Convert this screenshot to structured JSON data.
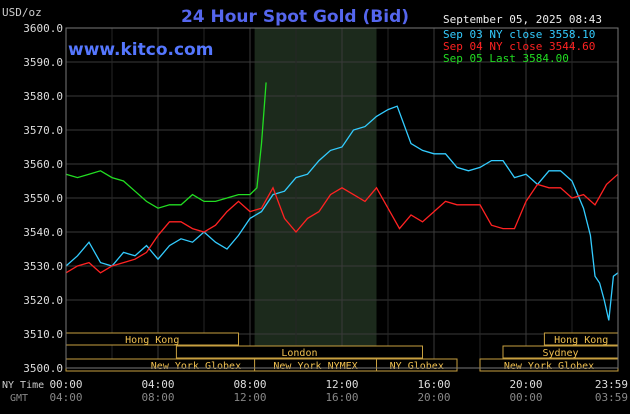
{
  "chart_data": {
    "type": "line",
    "title": "24 Hour Spot Gold (Bid)",
    "watermark": "www.kitco.com",
    "y_unit": "USD/oz",
    "date_stamp": "September 05, 2025 08:43",
    "ylim": [
      3500,
      3600
    ],
    "y_ticks": [
      "3500.0",
      "3510.0",
      "3520.0",
      "3530.0",
      "3540.0",
      "3550.0",
      "3560.0",
      "3570.0",
      "3580.0",
      "3590.0",
      "3600.0"
    ],
    "x_row_labels": {
      "primary": "NY Time",
      "secondary": "GMT"
    },
    "x_ticks": [
      {
        "ny": "00:00",
        "gmt": "04:00"
      },
      {
        "ny": "04:00",
        "gmt": "08:00"
      },
      {
        "ny": "08:00",
        "gmt": "12:00"
      },
      {
        "ny": "12:00",
        "gmt": "16:00"
      },
      {
        "ny": "16:00",
        "gmt": "20:00"
      },
      {
        "ny": "20:00",
        "gmt": "00:00"
      },
      {
        "ny": "23:59",
        "gmt": "03:59"
      }
    ],
    "sessions": [
      {
        "label": "Hong Kong",
        "row": 0,
        "start_h": 0,
        "end_h": 7.5
      },
      {
        "label": "London",
        "row": 1,
        "start_h": 4.8,
        "end_h": 15.5
      },
      {
        "label": "New York Globex",
        "row": 2,
        "start_h": 0,
        "end_h": 11.3
      },
      {
        "label": "New York NYMEX",
        "row": 2,
        "start_h": 8.2,
        "end_h": 13.5
      },
      {
        "label": "NY Globex",
        "row": 2,
        "start_h": 13.5,
        "end_h": 17.0
      },
      {
        "label": "Hong Kong",
        "row": 0,
        "start_h": 20.8,
        "end_h": 24
      },
      {
        "label": "Sydney",
        "row": 1,
        "start_h": 19.0,
        "end_h": 24
      },
      {
        "label": "New York Globex",
        "row": 2,
        "start_h": 18.0,
        "end_h": 24
      }
    ],
    "highlight_range_h": [
      8.2,
      13.5
    ],
    "series": [
      {
        "name": "Sep 03 NY close 3558.10",
        "color": "#33ccff",
        "x": [
          0,
          0.5,
          1.0,
          1.5,
          2.0,
          2.5,
          3.0,
          3.5,
          4.0,
          4.5,
          5.0,
          5.5,
          6.0,
          6.5,
          7.0,
          7.5,
          8.0,
          8.5,
          9.0,
          9.5,
          10.0,
          10.5,
          11.0,
          11.5,
          12.0,
          12.5,
          13.0,
          13.5,
          14.0,
          14.4,
          15.0,
          15.5,
          16.0,
          16.5,
          17.0,
          17.5,
          18.0,
          18.5,
          19.0,
          19.5,
          20.0,
          20.5,
          21.0,
          21.5,
          22.0,
          22.5,
          22.8,
          23.0,
          23.2,
          23.4,
          23.6,
          23.8,
          24.0
        ],
        "values": [
          3530,
          3533,
          3537,
          3531,
          3530,
          3534,
          3533,
          3536,
          3532,
          3536,
          3538,
          3537,
          3540,
          3537,
          3535,
          3539,
          3544,
          3546,
          3551,
          3552,
          3556,
          3557,
          3561,
          3564,
          3565,
          3570,
          3571,
          3574,
          3576,
          3577,
          3566,
          3564,
          3563,
          3563,
          3559,
          3558,
          3559,
          3561,
          3561,
          3556,
          3557,
          3554,
          3558,
          3558,
          3555,
          3547,
          3539,
          3527,
          3525,
          3520,
          3514,
          3527,
          3528
        ]
      },
      {
        "name": "Sep 04 NY close 3544.60",
        "color": "#ff2222",
        "x": [
          0,
          0.5,
          1.0,
          1.5,
          2.0,
          2.5,
          3.0,
          3.5,
          4.0,
          4.5,
          5.0,
          5.5,
          6.0,
          6.5,
          7.0,
          7.5,
          8.0,
          8.5,
          9.0,
          9.5,
          10.0,
          10.5,
          11.0,
          11.5,
          12.0,
          12.5,
          13.0,
          13.5,
          14.0,
          14.5,
          15.0,
          15.5,
          16.0,
          16.5,
          17.0,
          17.5,
          18.0,
          18.5,
          19.0,
          19.5,
          20.0,
          20.5,
          21.0,
          21.5,
          22.0,
          22.5,
          23.0,
          23.5,
          24.0
        ],
        "values": [
          3528,
          3530,
          3531,
          3528,
          3530,
          3531,
          3532,
          3534,
          3539,
          3543,
          3543,
          3541,
          3540,
          3542,
          3546,
          3549,
          3546,
          3547,
          3553,
          3544,
          3540,
          3544,
          3546,
          3551,
          3553,
          3551,
          3549,
          3553,
          3547,
          3541,
          3545,
          3543,
          3546,
          3549,
          3548,
          3548,
          3548,
          3542,
          3541,
          3541,
          3549,
          3554,
          3553,
          3553,
          3550,
          3551,
          3548,
          3554,
          3557
        ]
      },
      {
        "name": "Sep 05 Last 3584.00",
        "color": "#22dd22",
        "x": [
          0,
          0.5,
          1.0,
          1.5,
          2.0,
          2.5,
          3.0,
          3.5,
          4.0,
          4.5,
          5.0,
          5.5,
          6.0,
          6.5,
          7.0,
          7.5,
          8.0,
          8.3,
          8.5,
          8.7
        ],
        "values": [
          3557,
          3556,
          3557,
          3558,
          3556,
          3555,
          3552,
          3549,
          3547,
          3548,
          3548,
          3551,
          3549,
          3549,
          3550,
          3551,
          3551,
          3553,
          3566,
          3584
        ]
      }
    ]
  }
}
